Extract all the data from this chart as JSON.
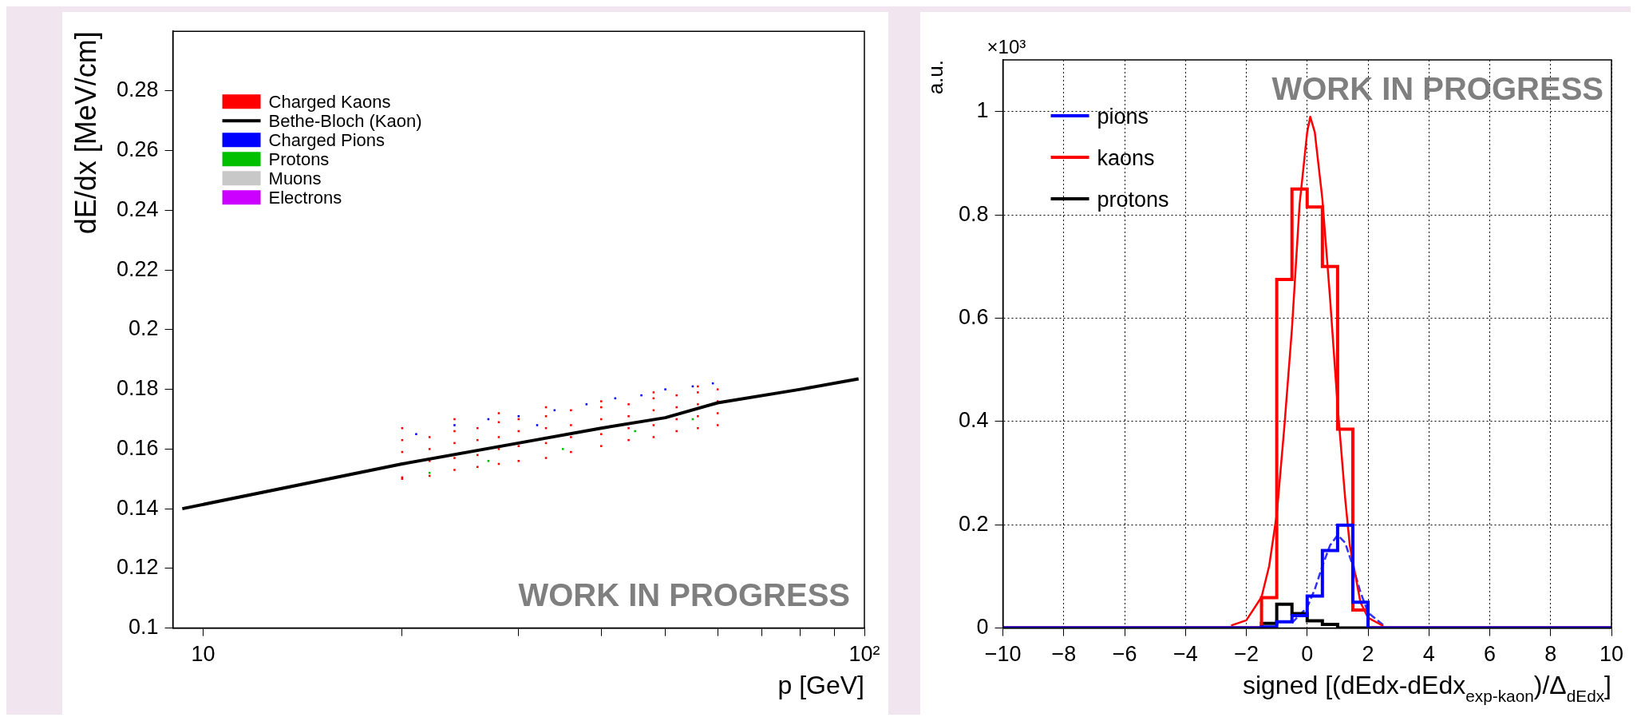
{
  "chart_data": [
    {
      "type": "scatter",
      "xlabel": "p [GeV]",
      "ylabel": "dE/dx [MeV/cm]",
      "log": "x",
      "xlim": [
        9,
        100
      ],
      "xticks": [
        10,
        {
          "value": 20,
          "label": null
        },
        {
          "value": 30,
          "label": null
        },
        {
          "value": 40,
          "label": null
        },
        {
          "value": 50,
          "label": null
        },
        {
          "value": 60,
          "label": null
        },
        {
          "value": 70,
          "label": null
        },
        {
          "value": 80,
          "label": null
        },
        {
          "value": 90,
          "label": null
        },
        {
          "value": 100,
          "label": "10²"
        }
      ],
      "ylim": [
        0.1,
        0.3
      ],
      "yticks": [
        0.1,
        0.12,
        0.14,
        0.16,
        0.18,
        0.2,
        0.22,
        0.24,
        0.26,
        0.28
      ],
      "legend": "top left",
      "annotations": [
        "WORK IN PROGRESS"
      ],
      "series": [
        {
          "name": "Charged Kaons",
          "color": "#ff0000",
          "marker": "square",
          "x": [
            20,
            20,
            20,
            20,
            20,
            22,
            22,
            22,
            22,
            24,
            24,
            24,
            24,
            24,
            26,
            26,
            26,
            26,
            28,
            28,
            28,
            28,
            28,
            30,
            30,
            30,
            30,
            33,
            33,
            33,
            33,
            33,
            36,
            36,
            36,
            36,
            40,
            40,
            40,
            40,
            40,
            44,
            44,
            44,
            44,
            48,
            48,
            48,
            48,
            48,
            52,
            52,
            52,
            52,
            56,
            56,
            56,
            56,
            56,
            60,
            60,
            60,
            60
          ],
          "values": [
            0.15,
            0.1505,
            0.159,
            0.163,
            0.167,
            0.151,
            0.156,
            0.16,
            0.164,
            0.153,
            0.157,
            0.162,
            0.166,
            0.17,
            0.154,
            0.158,
            0.163,
            0.167,
            0.155,
            0.16,
            0.164,
            0.169,
            0.172,
            0.156,
            0.161,
            0.166,
            0.17,
            0.157,
            0.162,
            0.167,
            0.171,
            0.174,
            0.159,
            0.164,
            0.168,
            0.173,
            0.161,
            0.165,
            0.17,
            0.174,
            0.176,
            0.163,
            0.167,
            0.171,
            0.175,
            0.164,
            0.168,
            0.173,
            0.177,
            0.179,
            0.166,
            0.17,
            0.174,
            0.178,
            0.167,
            0.171,
            0.175,
            0.179,
            0.181,
            0.168,
            0.172,
            0.176,
            0.18
          ]
        },
        {
          "name": "Bethe-Bloch (Kaon)",
          "type": "line",
          "color": "#000000",
          "x": [
            9.3,
            20,
            30,
            40,
            50,
            60,
            80,
            98
          ],
          "values": [
            0.14,
            0.155,
            0.162,
            0.167,
            0.1705,
            0.1755,
            0.18,
            0.1835
          ]
        },
        {
          "name": "Charged Pions",
          "color": "#0000ff",
          "marker": "square",
          "x": [
            21,
            24,
            27,
            30,
            32,
            34,
            38,
            42,
            46,
            50,
            55,
            59
          ],
          "values": [
            0.165,
            0.168,
            0.17,
            0.171,
            0.168,
            0.173,
            0.175,
            0.177,
            0.178,
            0.18,
            0.181,
            0.182
          ]
        },
        {
          "name": "Protons",
          "color": "#00c000",
          "marker": "square",
          "x": [
            22,
            27,
            35,
            45,
            55
          ],
          "values": [
            0.152,
            0.156,
            0.16,
            0.166,
            0.17
          ]
        },
        {
          "name": "Muons",
          "color": "#c8c8c8",
          "marker": "square"
        },
        {
          "name": "Electrons",
          "color": "#cc00ff",
          "marker": "square"
        }
      ]
    },
    {
      "type": "histogram",
      "xlabel": "signed [(dEdx-dEdx$_{exp-kaon}$)/Δ$_{dEdx}$]",
      "ylabel": "a.u.",
      "xlim": [
        -10,
        10
      ],
      "xticks": [
        {
          "value": -10,
          "label": "−10"
        },
        {
          "value": -8,
          "label": "−8"
        },
        {
          "value": -6,
          "label": "−6"
        },
        {
          "value": -4,
          "label": "−4"
        },
        {
          "value": -2,
          "label": "−2"
        },
        0,
        2,
        4,
        6,
        8,
        10
      ],
      "ylim": [
        0,
        1.1
      ],
      "yticks": [
        0,
        0.2,
        0.4,
        0.6,
        0.8,
        1
      ],
      "grid": true,
      "legend": "top left",
      "annotations": [
        "×10³",
        "WORK IN PROGRESS"
      ],
      "bins": [
        -10,
        -9.5,
        -9,
        -8.5,
        -8,
        -7.5,
        -7,
        -6.5,
        -6,
        -5.5,
        -5,
        -4.5,
        -4,
        -3.5,
        -3,
        -2.5,
        -2,
        -1.5,
        -1,
        -0.5,
        0,
        0.5,
        1,
        1.5,
        2,
        2.5,
        3,
        3.5,
        4,
        4.5,
        5,
        5.5,
        6,
        6.5,
        7,
        7.5,
        8,
        8.5,
        9,
        9.5,
        10
      ],
      "series": [
        {
          "name": "pions",
          "color": "#0000ff",
          "values": [
            0,
            0,
            0,
            0,
            0,
            0,
            0,
            0,
            0,
            0,
            0,
            0,
            0,
            0,
            0,
            0,
            0,
            0.002,
            0.012,
            0.024,
            0.062,
            0.15,
            0.199,
            0.05,
            0,
            0,
            0,
            0,
            0,
            0,
            0,
            0,
            0,
            0,
            0,
            0,
            0,
            0,
            0,
            0
          ]
        },
        {
          "name": "kaons",
          "color": "#ff0000",
          "values": [
            0,
            0,
            0,
            0,
            0,
            0,
            0,
            0,
            0,
            0,
            0,
            0,
            0,
            0,
            0,
            0,
            0,
            0.059,
            0.675,
            0.85,
            0.815,
            0.7,
            0.385,
            0.035,
            0,
            0,
            0,
            0,
            0,
            0,
            0,
            0,
            0,
            0,
            0,
            0,
            0,
            0,
            0,
            0
          ]
        },
        {
          "name": "protons",
          "color": "#000000",
          "values": [
            0,
            0,
            0,
            0,
            0,
            0,
            0,
            0,
            0,
            0,
            0,
            0,
            0,
            0,
            0,
            0,
            0,
            0.009,
            0.046,
            0.028,
            0.014,
            0.007,
            0,
            0,
            0,
            0,
            0,
            0,
            0,
            0,
            0,
            0,
            0,
            0,
            0,
            0,
            0,
            0,
            0,
            0
          ]
        },
        {
          "type": "line",
          "color": "#ff0000",
          "x": [
            -2.5,
            -2,
            -1.5,
            -1.25,
            -1,
            -0.75,
            -0.5,
            -0.25,
            0,
            0.1,
            0.25,
            0.5,
            0.75,
            1,
            1.25,
            1.4,
            1.75,
            2,
            2.5
          ],
          "values": [
            0.005,
            0.015,
            0.06,
            0.12,
            0.22,
            0.39,
            0.58,
            0.82,
            0.96,
            0.99,
            0.96,
            0.83,
            0.64,
            0.43,
            0.25,
            0.16,
            0.05,
            0.02,
            0.004
          ]
        },
        {
          "type": "line",
          "color": "#3030ff",
          "line_style": "dashed",
          "x": [
            -0.5,
            0,
            0.25,
            0.5,
            0.75,
            1,
            1.25,
            1.5,
            1.75,
            2,
            2.5
          ],
          "values": [
            0.01,
            0.04,
            0.075,
            0.12,
            0.16,
            0.18,
            0.165,
            0.12,
            0.07,
            0.03,
            0.006
          ]
        }
      ]
    }
  ]
}
